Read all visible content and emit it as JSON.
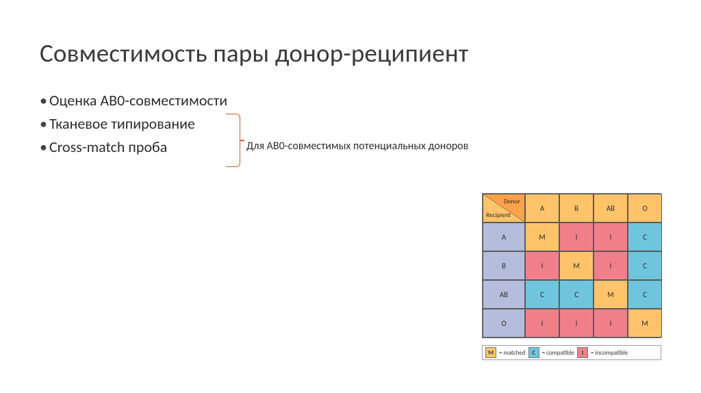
{
  "title": "Совместимость пары донор-реципиент",
  "bullets": [
    "Оценка АВ0-совместимости",
    "Тканевое типирование",
    "Cross-match проба"
  ],
  "annotation": "Для АВ0-совместимых потенциальных доноров",
  "abo_table": {
    "corner": {
      "donor": "Donor",
      "recipient": "Recipient"
    },
    "col_headers": [
      "A",
      "B",
      "AB",
      "O"
    ],
    "row_headers": [
      "A",
      "B",
      "AB",
      "O"
    ],
    "cells": [
      [
        "M",
        "I",
        "I",
        "C"
      ],
      [
        "I",
        "M",
        "I",
        "C"
      ],
      [
        "C",
        "C",
        "M",
        "C"
      ],
      [
        "I",
        "I",
        "I",
        "M"
      ]
    ],
    "colors": {
      "M": "#ffc46a",
      "I": "#f07f8a",
      "C": "#6fc5dd",
      "col_header_bg": "#ffc46a",
      "row_header_bg": "#b4bddc",
      "border": "#5a5a5a"
    }
  },
  "legend": [
    {
      "key": "M",
      "label": "= matched",
      "bg": "#ffc46a"
    },
    {
      "key": "C",
      "label": "= compatible",
      "bg": "#6fc5dd"
    },
    {
      "key": "I",
      "label": "= incompatible",
      "bg": "#f07f8a"
    }
  ]
}
